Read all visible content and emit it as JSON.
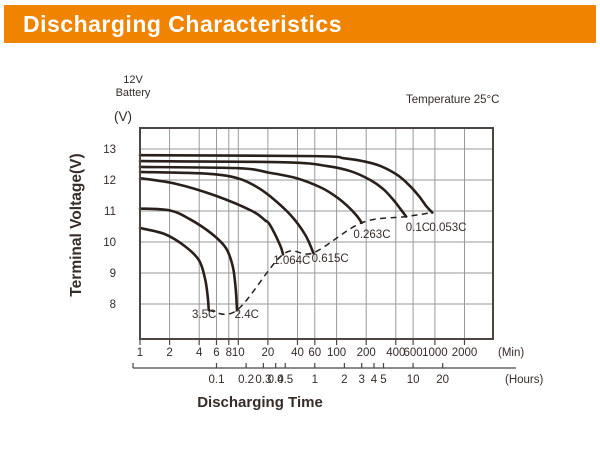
{
  "header": {
    "title": "Discharging Characteristics",
    "bg_color": "#F08300",
    "text_color": "#FFFFFF"
  },
  "annotations": {
    "battery_line1": "12V",
    "battery_line2": "Battery",
    "temperature": "Temperature 25°C",
    "y_unit": "(V)",
    "y_axis_title": "Terminal Voltage(V)",
    "x_axis_title": "Discharging Time",
    "min_unit": "(Min)",
    "hours_unit": "(Hours)"
  },
  "chart_data": {
    "type": "line",
    "title": "Discharging Characteristics",
    "xlabel": "Discharging Time",
    "ylabel": "Terminal Voltage(V)",
    "x_scale": "log",
    "x_unit": "minutes",
    "xlim_minutes": [
      1,
      3900
    ],
    "ylim": [
      6.9,
      13.68
    ],
    "grid": true,
    "y_ticks": [
      8,
      9,
      10,
      11,
      12,
      13
    ],
    "minute_ticks": [
      1,
      2,
      4,
      6,
      8,
      10,
      20,
      40,
      60,
      100,
      200,
      400,
      600,
      1000,
      2000
    ],
    "hour_ticks": [
      0.1,
      0.2,
      0.3,
      0.4,
      0.5,
      1,
      2,
      3,
      4,
      5,
      10,
      20
    ],
    "colors": {
      "curve": "#29201c",
      "dashed": "#29201c",
      "grid": "#9a9a9a",
      "axis": "#4c4643",
      "text": "#362c28"
    },
    "series": [
      {
        "name": "3.5C",
        "label_at": {
          "t": 4.5,
          "v": 7.55
        },
        "points": [
          [
            1,
            10.45
          ],
          [
            1.8,
            10.25
          ],
          [
            2.9,
            9.85
          ],
          [
            4.0,
            9.4
          ],
          [
            4.6,
            8.8
          ],
          [
            4.9,
            8.2
          ],
          [
            5.0,
            7.8
          ]
        ]
      },
      {
        "name": "2.4C",
        "label_at": {
          "t": 12.2,
          "v": 7.55
        },
        "points": [
          [
            1,
            11.08
          ],
          [
            2,
            11.02
          ],
          [
            3.2,
            10.74
          ],
          [
            5.4,
            10.26
          ],
          [
            7.5,
            9.8
          ],
          [
            8.8,
            9.2
          ],
          [
            9.4,
            8.5
          ],
          [
            9.7,
            7.8
          ]
        ]
      },
      {
        "name": "1.064C",
        "label_at": {
          "t": 35,
          "v": 9.29
        },
        "points": [
          [
            1,
            12.06
          ],
          [
            2.3,
            11.88
          ],
          [
            5.8,
            11.5
          ],
          [
            13.8,
            11.0
          ],
          [
            18.7,
            10.7
          ],
          [
            21,
            10.55
          ],
          [
            26.6,
            9.9
          ],
          [
            28.5,
            9.6
          ]
        ]
      },
      {
        "name": "0.615C",
        "label_at": {
          "t": 86,
          "v": 9.35
        },
        "points": [
          [
            1,
            12.26
          ],
          [
            5,
            12.2
          ],
          [
            10,
            12.05
          ],
          [
            15,
            11.8
          ],
          [
            21,
            11.48
          ],
          [
            34,
            10.87
          ],
          [
            48,
            10.23
          ],
          [
            58,
            9.65
          ]
        ]
      },
      {
        "name": "0.263C",
        "label_at": {
          "t": 229,
          "v": 10.13
        },
        "points": [
          [
            1,
            12.42
          ],
          [
            10,
            12.38
          ],
          [
            21,
            12.23
          ],
          [
            40,
            12.05
          ],
          [
            70,
            11.75
          ],
          [
            100,
            11.45
          ],
          [
            130,
            11.15
          ],
          [
            160,
            10.85
          ],
          [
            180,
            10.62
          ]
        ]
      },
      {
        "name": "0.1C",
        "label_at": {
          "t": 672,
          "v": 10.35
        },
        "points": [
          [
            1,
            12.61
          ],
          [
            30,
            12.57
          ],
          [
            80,
            12.45
          ],
          [
            140,
            12.28
          ],
          [
            220,
            12.0
          ],
          [
            300,
            11.7
          ],
          [
            380,
            11.35
          ],
          [
            450,
            11.05
          ],
          [
            510,
            10.82
          ]
        ]
      },
      {
        "name": "0.053C",
        "label_at": {
          "t": 1358,
          "v": 10.35
        },
        "points": [
          [
            1,
            12.8
          ],
          [
            60,
            12.77
          ],
          [
            120,
            12.7
          ],
          [
            190,
            12.6
          ],
          [
            280,
            12.45
          ],
          [
            420,
            12.15
          ],
          [
            560,
            11.8
          ],
          [
            700,
            11.45
          ],
          [
            820,
            11.15
          ],
          [
            940,
            10.95
          ]
        ]
      }
    ],
    "dashed_locus": [
      [
        5.0,
        7.8
      ],
      [
        9.7,
        7.8
      ],
      [
        28.5,
        9.6
      ],
      [
        58,
        9.65
      ],
      [
        180,
        10.62
      ],
      [
        510,
        10.82
      ],
      [
        940,
        10.95
      ]
    ]
  }
}
